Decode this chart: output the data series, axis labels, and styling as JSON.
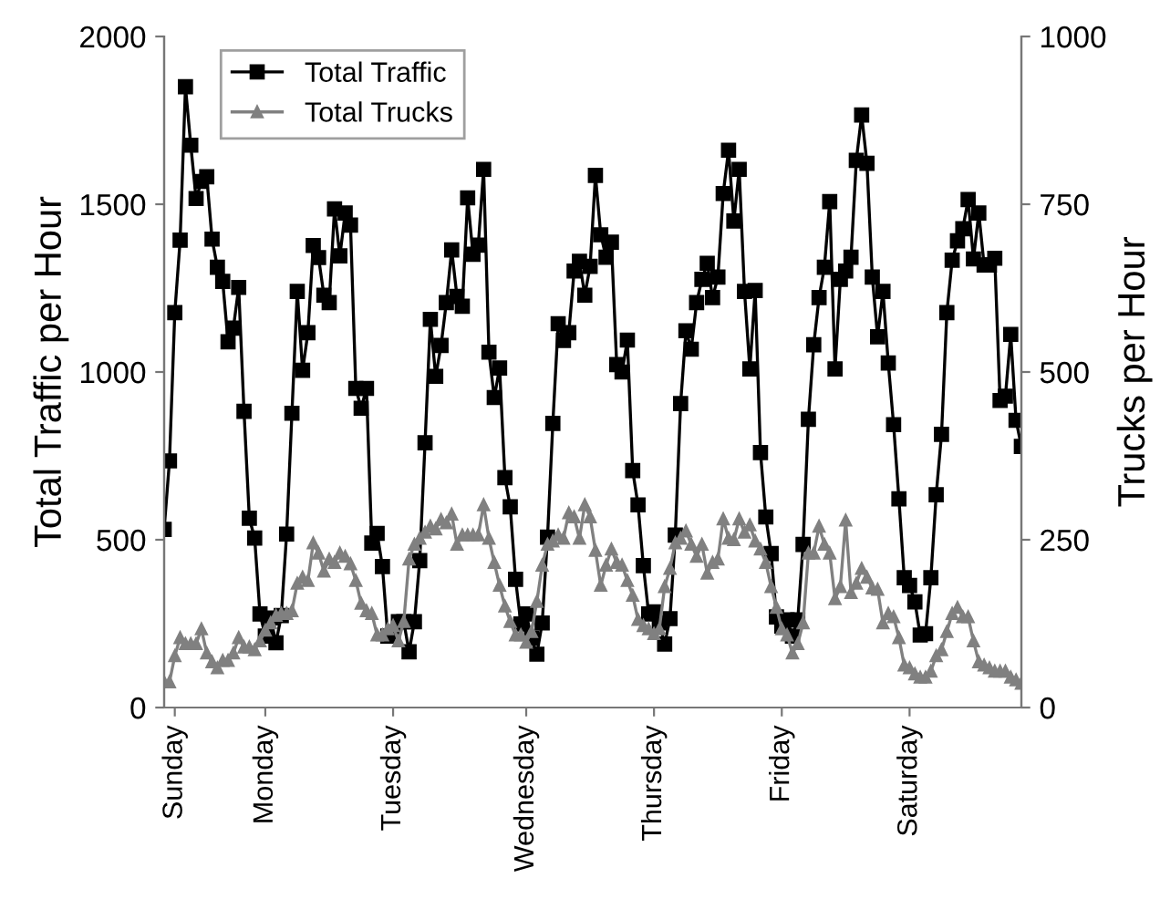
{
  "chart_data": {
    "type": "line",
    "ylabel": "Total Traffic per Hour",
    "y2label": "Trucks per Hour",
    "categories": [
      null,
      null,
      "Sunday",
      null,
      null,
      null,
      null,
      null,
      null,
      null,
      null,
      null,
      null,
      null,
      null,
      null,
      null,
      null,
      null,
      "Monday",
      null,
      null,
      null,
      null,
      null,
      null,
      null,
      null,
      null,
      null,
      null,
      null,
      null,
      null,
      null,
      null,
      null,
      null,
      null,
      null,
      null,
      null,
      null,
      "Tuesday",
      null,
      null,
      null,
      null,
      null,
      null,
      null,
      null,
      null,
      null,
      null,
      null,
      null,
      null,
      null,
      null,
      null,
      null,
      null,
      null,
      null,
      null,
      null,
      null,
      "Wednesday",
      null,
      null,
      null,
      null,
      null,
      null,
      null,
      null,
      null,
      null,
      null,
      null,
      null,
      null,
      null,
      null,
      null,
      null,
      null,
      null,
      null,
      null,
      null,
      "Thursday",
      null,
      null,
      null,
      null,
      null,
      null,
      null,
      null,
      null,
      null,
      null,
      null,
      null,
      null,
      null,
      null,
      null,
      null,
      null,
      null,
      null,
      null,
      null,
      "Friday",
      null,
      null,
      null,
      null,
      null,
      null,
      null,
      null,
      null,
      null,
      null,
      null,
      null,
      null,
      null,
      null,
      null,
      null,
      null,
      null,
      null,
      null,
      null,
      "Saturday",
      null,
      null,
      null,
      null,
      null,
      null,
      null,
      null,
      null,
      null,
      null,
      null,
      null,
      null,
      null,
      null,
      null,
      null,
      null,
      null,
      null
    ],
    "ylim": [
      0,
      2000
    ],
    "yticks": [
      0,
      500,
      1000,
      1500,
      2000
    ],
    "y2lim": [
      0,
      1000
    ],
    "y2ticks": [
      0,
      250,
      500,
      750,
      1000
    ],
    "grid": false,
    "legend": "top left",
    "series": [
      {
        "name": "Total Traffic",
        "color": "#000000",
        "marker": "square",
        "values": [
          531,
          735,
          1177,
          1393,
          1850,
          1676,
          1517,
          1568,
          1582,
          1396,
          1312,
          1270,
          1090,
          1131,
          1252,
          883,
          564,
          505,
          279,
          213,
          267,
          193,
          274,
          517,
          877,
          1240,
          1005,
          1117,
          1377,
          1341,
          1229,
          1207,
          1486,
          1346,
          1474,
          1438,
          951,
          892,
          951,
          490,
          519,
          420,
          213,
          225,
          256,
          256,
          166,
          256,
          438,
          789,
          1157,
          987,
          1079,
          1207,
          1364,
          1225,
          1196,
          1519,
          1351,
          1378,
          1604,
          1059,
          924,
          1012,
          685,
          598,
          382,
          249,
          279,
          207,
          159,
          252,
          508,
          847,
          1144,
          1094,
          1117,
          1301,
          1330,
          1229,
          1315,
          1586,
          1409,
          1342,
          1387,
          1022,
          1000,
          1095,
          706,
          604,
          423,
          279,
          285,
          252,
          189,
          265,
          514,
          906,
          1123,
          1068,
          1207,
          1276,
          1324,
          1222,
          1283,
          1532,
          1661,
          1450,
          1604,
          1240,
          1009,
          1243,
          760,
          568,
          459,
          270,
          243,
          261,
          213,
          261,
          486,
          859,
          1081,
          1222,
          1312,
          1508,
          1009,
          1276,
          1301,
          1342,
          1631,
          1766,
          1622,
          1283,
          1105,
          1240,
          1027,
          843,
          622,
          387,
          364,
          315,
          216,
          220,
          387,
          634,
          814,
          1177,
          1333,
          1391,
          1427,
          1514,
          1337,
          1474,
          1319,
          1319,
          1339,
          915,
          928,
          1112,
          856,
          778
        ]
      },
      {
        "name": "Total Trucks",
        "color": "#808080",
        "marker": "triangle",
        "axis": "y2",
        "values": [
          38,
          38,
          77,
          104,
          95,
          95,
          95,
          117,
          81,
          68,
          59,
          70,
          70,
          81,
          104,
          90,
          90,
          86,
          99,
          115,
          126,
          137,
          140,
          140,
          144,
          185,
          194,
          189,
          245,
          230,
          203,
          221,
          216,
          230,
          225,
          214,
          189,
          155,
          144,
          140,
          108,
          108,
          117,
          122,
          99,
          128,
          221,
          243,
          252,
          261,
          270,
          266,
          280,
          275,
          288,
          243,
          257,
          257,
          257,
          257,
          302,
          252,
          216,
          182,
          151,
          128,
          108,
          108,
          97,
          113,
          158,
          212,
          243,
          248,
          257,
          252,
          290,
          284,
          252,
          302,
          284,
          234,
          182,
          212,
          236,
          216,
          212,
          189,
          167,
          131,
          122,
          117,
          110,
          117,
          180,
          207,
          245,
          252,
          263,
          243,
          225,
          243,
          200,
          216,
          221,
          281,
          252,
          250,
          281,
          261,
          272,
          248,
          236,
          216,
          180,
          149,
          117,
          108,
          81,
          95,
          126,
          230,
          230,
          270,
          243,
          230,
          162,
          180,
          279,
          171,
          185,
          207,
          194,
          178,
          176,
          126,
          140,
          135,
          104,
          63,
          59,
          50,
          45,
          45,
          54,
          77,
          86,
          113,
          140,
          149,
          135,
          135,
          99,
          68,
          63,
          59,
          54,
          54,
          54,
          45,
          41,
          36
        ]
      }
    ]
  }
}
